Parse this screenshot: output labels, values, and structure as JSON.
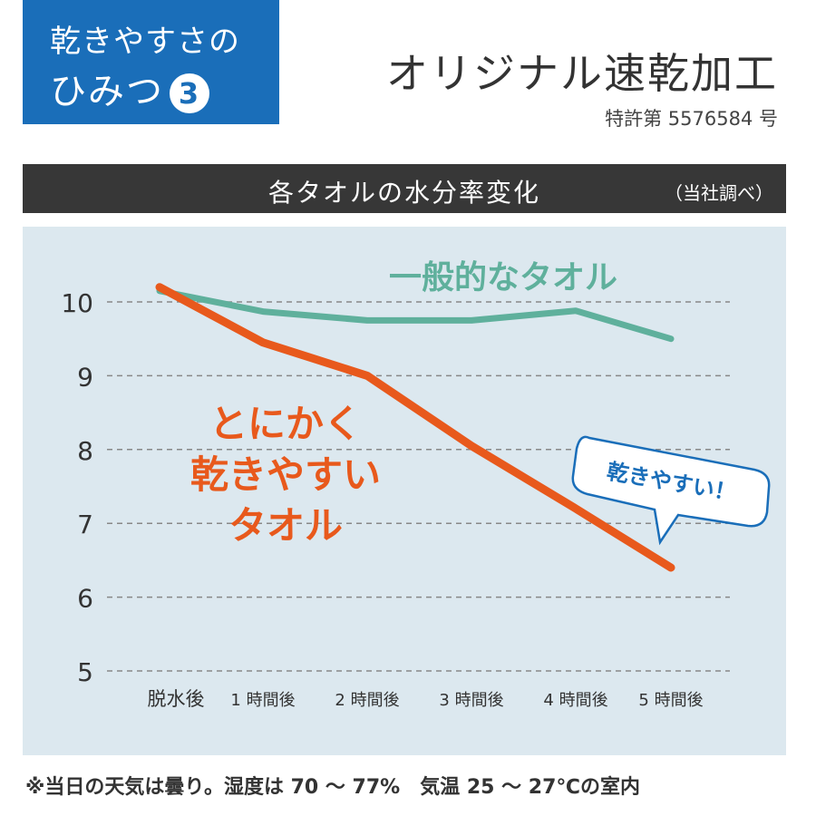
{
  "badge": {
    "line1": "乾きやすさの",
    "line2": "ひみつ",
    "number": "3"
  },
  "header": {
    "title": "オリジナル速乾加工",
    "patent": "特許第 5576584 号"
  },
  "chart_bar": {
    "title": "各タオルの水分率変化",
    "source": "（当社調べ）"
  },
  "footnote": "※当日の天気は曇り。湿度は 70 ～ 77%　気温 25 ～ 27℃の室内",
  "colors": {
    "orange": "#e8591c",
    "teal": "#5fb09c",
    "bg": "#dce8ef",
    "blue": "#1a6eb9"
  },
  "chart_data": {
    "type": "line",
    "title": "各タオルの水分率変化",
    "categories": [
      "脱水後",
      "1 時間後",
      "2 時間後",
      "3 時間後",
      "4 時間後",
      "5 時間後"
    ],
    "yticks": [
      "5",
      "6",
      "7",
      "8",
      "9",
      "10"
    ],
    "ylim": [
      5,
      10.4
    ],
    "grid": true,
    "series": [
      {
        "name": "一般的なタオル",
        "values": [
          10.15,
          9.87,
          9.75,
          9.75,
          9.88,
          9.5
        ]
      },
      {
        "name": "とにかく乾きやすいタオル",
        "label_lines": [
          "とにかく",
          "乾きやすい",
          "タオル"
        ],
        "values": [
          10.2,
          9.45,
          9.0,
          8.05,
          7.2,
          6.4
        ]
      }
    ],
    "callout": "乾きやすい！"
  }
}
